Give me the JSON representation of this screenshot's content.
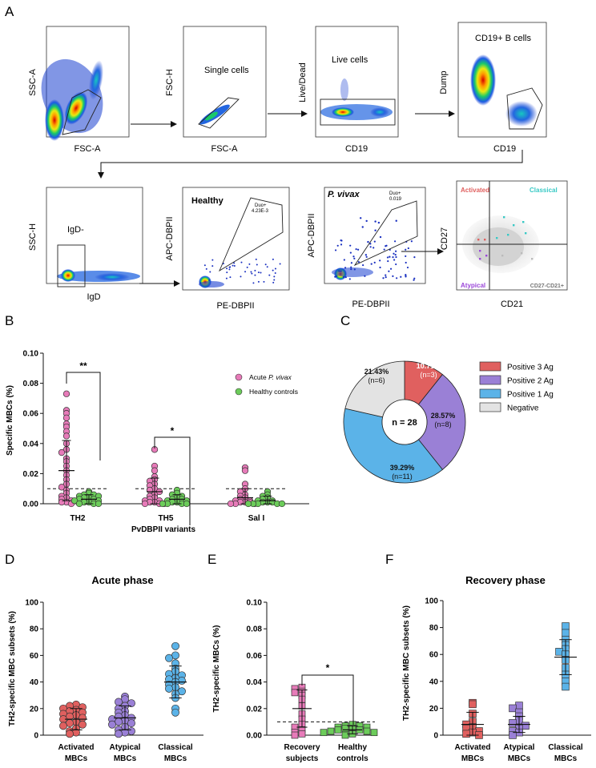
{
  "panel_letters": {
    "A": "A",
    "B": "B",
    "C": "C",
    "D": "D",
    "E": "E",
    "F": "F"
  },
  "gating": {
    "row1": [
      {
        "x": "FSC-A",
        "y": "SSC-A",
        "gate": ""
      },
      {
        "x": "FSC-A",
        "y": "FSC-H",
        "gate": "Single cells"
      },
      {
        "x": "CD19",
        "y": "Live/Dead",
        "gate": "Live cells"
      },
      {
        "x": "CD19",
        "y": "Dump",
        "gate": "CD19+ B cells"
      }
    ],
    "row2": [
      {
        "x": "IgD",
        "y": "SSC-H",
        "gate": "IgD-"
      },
      {
        "x": "PE-DBPII",
        "y": "APC-DBPII",
        "title": "Healthy",
        "duo": "Duo+",
        "duo_value": "4.23E-3"
      },
      {
        "x": "PE-DBPII",
        "y": "APC-DBPII",
        "title": "P. vivax",
        "duo": "Duo+",
        "duo_value": "0.019"
      },
      {
        "x": "CD21",
        "y": "CD27",
        "q_tl": "Activated",
        "q_tr": "Classical",
        "q_bl": "Atypical",
        "q_br": "CD27-CD21+"
      }
    ]
  },
  "colors": {
    "pink": "#e77bb9",
    "green": "#6ccc5a",
    "red": "#e0605f",
    "purple": "#9a80d6",
    "blue": "#5bb3e8",
    "grey": "#e3e3e3",
    "teal": "#38c9c5",
    "violet": "#9b47d9"
  },
  "chart_data": [
    {
      "id": "B",
      "type": "scatter",
      "ylabel": "Specific MBCs (%)",
      "xlabel": "PvDBPII variants",
      "ylim": [
        0,
        0.1
      ],
      "yticks": [
        "0.00",
        "0.02",
        "0.04",
        "0.06",
        "0.08",
        "0.10"
      ],
      "categories": [
        "TH2",
        "TH5",
        "Sal I"
      ],
      "threshold": 0.01,
      "legend": [
        {
          "name": "Acute ",
          "italic": "P. vivax"
        },
        {
          "name": "Healthy controls",
          "italic": ""
        }
      ],
      "significance": [
        {
          "label": "**",
          "category": "TH2"
        },
        {
          "label": "*",
          "category": "TH5"
        }
      ],
      "series": [
        {
          "name": "Acute P. vivax",
          "color": "pink",
          "values": [
            [
              0.073,
              0.062,
              0.06,
              0.057,
              0.053,
              0.051,
              0.048,
              0.045,
              0.04,
              0.036,
              0.034,
              0.03,
              0.028,
              0.025,
              0.022,
              0.019,
              0.016,
              0.013,
              0.011,
              0.009,
              0.007,
              0.005,
              0.004,
              0.003,
              0.002,
              0.001,
              0.001,
              0.0
            ],
            [
              0.036,
              0.025,
              0.022,
              0.018,
              0.016,
              0.015,
              0.013,
              0.012,
              0.01,
              0.009,
              0.008,
              0.006,
              0.005,
              0.004,
              0.003,
              0.002,
              0.002,
              0.001,
              0.001,
              0.0,
              0.0,
              0.0
            ],
            [
              0.024,
              0.022,
              0.013,
              0.01,
              0.008,
              0.006,
              0.005,
              0.004,
              0.003,
              0.002,
              0.002,
              0.001,
              0.001,
              0.001,
              0.0,
              0.0,
              0.0
            ]
          ],
          "mean": [
            0.022,
            0.008,
            0.004
          ],
          "sd": [
            0.02,
            0.009,
            0.006
          ]
        },
        {
          "name": "Healthy controls",
          "color": "green",
          "values": [
            [
              0.008,
              0.007,
              0.006,
              0.006,
              0.005,
              0.005,
              0.004,
              0.004,
              0.003,
              0.003,
              0.002,
              0.002,
              0.001,
              0.001,
              0.0,
              0.0,
              0.0
            ],
            [
              0.009,
              0.007,
              0.006,
              0.005,
              0.004,
              0.003,
              0.003,
              0.002,
              0.002,
              0.001,
              0.001,
              0.0,
              0.0,
              0.0,
              0.0
            ],
            [
              0.008,
              0.006,
              0.005,
              0.004,
              0.003,
              0.002,
              0.002,
              0.001,
              0.001,
              0.001,
              0.0,
              0.0,
              0.0,
              0.0,
              0.0
            ]
          ],
          "mean": [
            0.003,
            0.003,
            0.002
          ],
          "sd": [
            0.003,
            0.003,
            0.003
          ]
        }
      ]
    },
    {
      "id": "C",
      "type": "pie",
      "center_label": "n = 28",
      "slices": [
        {
          "name": "Positive 3 Ag",
          "value": 10.71,
          "label": "10.71%",
          "n": "(n=3)",
          "color": "red"
        },
        {
          "name": "Positive 2 Ag",
          "value": 28.57,
          "label": "28.57%",
          "n": "(n=8)",
          "color": "purple"
        },
        {
          "name": "Positive 1 Ag",
          "value": 39.29,
          "label": "39.29%",
          "n": "(n=11)",
          "color": "blue"
        },
        {
          "name": "Negative",
          "value": 21.43,
          "label": "21.43%",
          "n": "(n=6)",
          "color": "grey"
        }
      ]
    },
    {
      "id": "D",
      "type": "scatter",
      "title": "Acute phase",
      "ylabel": "TH2-specific MBC subsets (%)",
      "ylim": [
        0,
        100
      ],
      "yticks": [
        "0",
        "20",
        "40",
        "60",
        "80",
        "100"
      ],
      "categories": [
        [
          "Activated",
          "MBCs"
        ],
        [
          "Atypical",
          "MBCs"
        ],
        [
          "Classical",
          "MBCs"
        ]
      ],
      "colors": [
        "red",
        "purple",
        "blue"
      ],
      "values": [
        [
          23,
          22,
          21,
          20,
          19,
          18,
          17,
          16,
          15,
          14,
          13,
          12,
          10,
          9,
          8,
          7,
          5,
          3,
          2,
          1
        ],
        [
          29,
          27,
          25,
          24,
          22,
          20,
          18,
          17,
          15,
          14,
          13,
          12,
          11,
          10,
          9,
          8,
          6,
          4,
          3,
          2,
          1
        ],
        [
          67,
          60,
          58,
          54,
          50,
          48,
          46,
          45,
          43,
          42,
          41,
          40,
          38,
          36,
          35,
          33,
          31,
          28,
          20,
          17
        ]
      ],
      "mean": [
        12,
        13,
        40
      ],
      "sd": [
        8,
        9,
        12
      ]
    },
    {
      "id": "E",
      "type": "scatter",
      "ylabel": "TH2-specific MBCs (%)",
      "ylim": [
        0,
        0.1
      ],
      "yticks": [
        "0.00",
        "0.02",
        "0.04",
        "0.06",
        "0.08",
        "0.10"
      ],
      "categories": [
        [
          "Recovery",
          "subjects"
        ],
        [
          "Healthy",
          "controls"
        ]
      ],
      "colors": [
        "pink",
        "green"
      ],
      "threshold": 0.01,
      "significance": [
        {
          "label": "*"
        }
      ],
      "values": [
        [
          0.036,
          0.035,
          0.033,
          0.032,
          0.03,
          0.027,
          0.022,
          0.016,
          0.012,
          0.008,
          0.006,
          0.004,
          0.002,
          0.001,
          0.0
        ],
        [
          0.008,
          0.007,
          0.007,
          0.006,
          0.006,
          0.005,
          0.005,
          0.004,
          0.004,
          0.003,
          0.003,
          0.002,
          0.002,
          0.001,
          0.0
        ]
      ],
      "mean": [
        0.02,
        0.004
      ],
      "sd": [
        0.014,
        0.003
      ]
    },
    {
      "id": "F",
      "type": "scatter",
      "title": "Recovery phase",
      "ylabel": "TH2-specific MBC subsets (%)",
      "ylim": [
        0,
        100
      ],
      "yticks": [
        "0",
        "20",
        "40",
        "60",
        "80",
        "100"
      ],
      "categories": [
        [
          "Activated",
          "MBCs"
        ],
        [
          "Atypical",
          "MBCs"
        ],
        [
          "Classical",
          "MBCs"
        ]
      ],
      "colors": [
        "red",
        "purple",
        "blue"
      ],
      "values": [
        [
          24,
          23,
          16,
          10,
          8,
          6,
          5,
          3,
          2,
          1,
          0
        ],
        [
          22,
          20,
          17,
          14,
          11,
          9,
          7,
          5,
          3,
          2,
          0
        ],
        [
          81,
          76,
          71,
          67,
          64,
          62,
          60,
          56,
          50,
          45,
          40,
          36
        ]
      ],
      "mean": [
        8,
        8,
        58
      ],
      "sd": [
        9,
        6,
        13
      ]
    }
  ]
}
